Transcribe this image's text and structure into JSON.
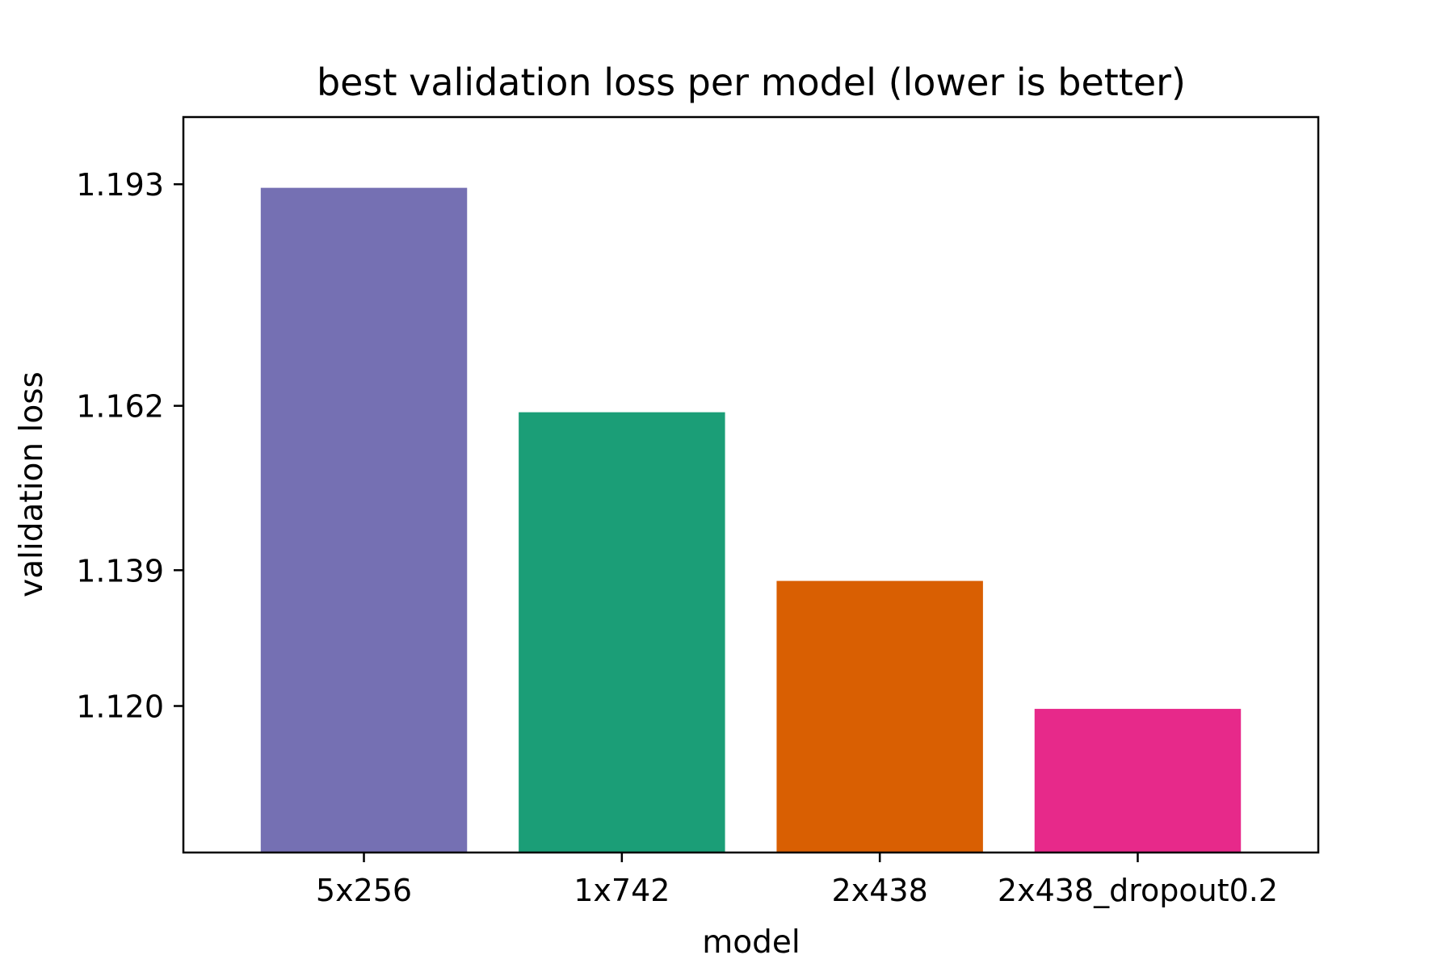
{
  "chart_data": {
    "type": "bar",
    "title": "best validation loss per model (lower is better)",
    "xlabel": "model",
    "ylabel": "validation loss",
    "categories": [
      "5x256",
      "1x742",
      "2x438",
      "2x438_dropout0.2"
    ],
    "values": [
      1.1925,
      1.1611,
      1.1375,
      1.1196
    ],
    "colors": [
      "#7570b3",
      "#1b9e77",
      "#d95f02",
      "#e7298a"
    ],
    "yticks": [
      1.12,
      1.139,
      1.162,
      1.193
    ],
    "ytick_labels": [
      "1.120",
      "1.139",
      "1.162",
      "1.193"
    ],
    "ylim": [
      1.0995,
      1.2024
    ],
    "grid": false,
    "legend": "none"
  }
}
